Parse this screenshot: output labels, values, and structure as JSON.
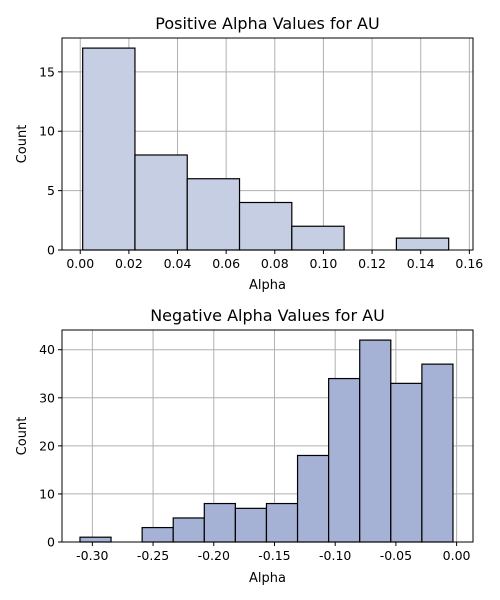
{
  "chart_data": [
    {
      "type": "bar",
      "title": "Positive Alpha Values for AU",
      "xlabel": "Alpha",
      "ylabel": "Count",
      "xlim": [
        -0.0075,
        0.1615
      ],
      "ylim": [
        0,
        17.85
      ],
      "xticks": [
        "0.00",
        "0.02",
        "0.04",
        "0.06",
        "0.08",
        "0.10",
        "0.12",
        "0.14",
        "0.16"
      ],
      "xtick_values": [
        0,
        0.02,
        0.04,
        0.06,
        0.08,
        0.1,
        0.12,
        0.14,
        0.16
      ],
      "yticks": [
        "0",
        "5",
        "10",
        "15"
      ],
      "ytick_values": [
        0,
        5,
        10,
        15
      ],
      "grid": true,
      "color": "#c5cee2",
      "bins": [
        {
          "x0": 0.001,
          "x1": 0.0225,
          "count": 17
        },
        {
          "x0": 0.0225,
          "x1": 0.044,
          "count": 8
        },
        {
          "x0": 0.044,
          "x1": 0.0655,
          "count": 6
        },
        {
          "x0": 0.0655,
          "x1": 0.087,
          "count": 4
        },
        {
          "x0": 0.087,
          "x1": 0.1085,
          "count": 2
        },
        {
          "x0": 0.1085,
          "x1": 0.13,
          "count": 0
        },
        {
          "x0": 0.13,
          "x1": 0.1515,
          "count": 1
        }
      ]
    },
    {
      "type": "bar",
      "title": "Negative Alpha Values for AU",
      "xlabel": "Alpha",
      "ylabel": "Count",
      "xlim": [
        -0.325,
        0.0135
      ],
      "ylim": [
        0,
        44.1
      ],
      "xticks": [
        "-0.30",
        "-0.25",
        "-0.20",
        "-0.15",
        "-0.10",
        "-0.05",
        "0.00"
      ],
      "xtick_values": [
        -0.3,
        -0.25,
        -0.2,
        -0.15,
        -0.1,
        -0.05,
        0.0
      ],
      "yticks": [
        "0",
        "10",
        "20",
        "30",
        "40"
      ],
      "ytick_values": [
        0,
        10,
        20,
        30,
        40
      ],
      "grid": true,
      "color": "#a5b1d5",
      "bins": [
        {
          "x0": -0.3102,
          "x1": -0.2846,
          "count": 1
        },
        {
          "x0": -0.2846,
          "x1": -0.259,
          "count": 0
        },
        {
          "x0": -0.259,
          "x1": -0.2334,
          "count": 3
        },
        {
          "x0": -0.2334,
          "x1": -0.2078,
          "count": 5
        },
        {
          "x0": -0.2078,
          "x1": -0.1822,
          "count": 8
        },
        {
          "x0": -0.1822,
          "x1": -0.1566,
          "count": 7
        },
        {
          "x0": -0.1566,
          "x1": -0.131,
          "count": 8
        },
        {
          "x0": -0.131,
          "x1": -0.1054,
          "count": 18
        },
        {
          "x0": -0.1054,
          "x1": -0.0798,
          "count": 34
        },
        {
          "x0": -0.0798,
          "x1": -0.0542,
          "count": 42
        },
        {
          "x0": -0.0542,
          "x1": -0.0286,
          "count": 33
        },
        {
          "x0": -0.0286,
          "x1": -0.003,
          "count": 37
        }
      ]
    }
  ]
}
